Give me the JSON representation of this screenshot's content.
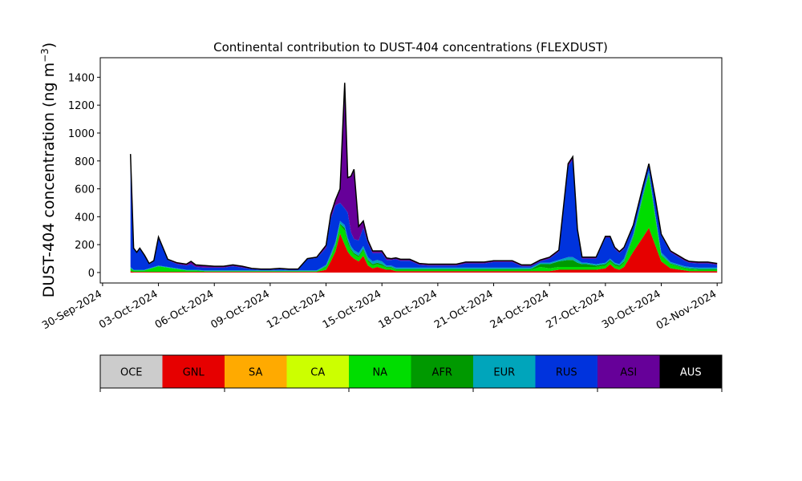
{
  "chart_data": {
    "type": "area",
    "title": "Continental contribution to DUST-404 concentrations (FLEXDUST)",
    "ylabel": "DUST-404 concentration (ng m",
    "ylabel_sup": "−3",
    "ylabel_close": ")",
    "xlabel": "",
    "ylim": [
      -75,
      1540
    ],
    "xlim": [
      "2024-09-29T21:00",
      "2024-11-02T06:00"
    ],
    "yticks": [
      0,
      200,
      400,
      600,
      800,
      1000,
      1200,
      1400
    ],
    "xticks": [
      {
        "date": "2024-09-30",
        "label": "30-Sep-2024"
      },
      {
        "date": "2024-10-03",
        "label": "03-Oct-2024"
      },
      {
        "date": "2024-10-06",
        "label": "06-Oct-2024"
      },
      {
        "date": "2024-10-09",
        "label": "09-Oct-2024"
      },
      {
        "date": "2024-10-12",
        "label": "12-Oct-2024"
      },
      {
        "date": "2024-10-15",
        "label": "15-Oct-2024"
      },
      {
        "date": "2024-10-18",
        "label": "18-Oct-2024"
      },
      {
        "date": "2024-10-21",
        "label": "21-Oct-2024"
      },
      {
        "date": "2024-10-24",
        "label": "24-Oct-2024"
      },
      {
        "date": "2024-10-27",
        "label": "27-Oct-2024"
      },
      {
        "date": "2024-10-30",
        "label": "30-Oct-2024"
      },
      {
        "date": "2024-11-02",
        "label": "02-Nov-2024"
      }
    ],
    "grid": false,
    "legend_placement": "colorbar below plot",
    "x": [
      "2024-10-01T12:00",
      "2024-10-01T16:00",
      "2024-10-01T20:00",
      "2024-10-02T00:00",
      "2024-10-02T06:00",
      "2024-10-02T12:00",
      "2024-10-02T18:00",
      "2024-10-03T00:00",
      "2024-10-03T12:00",
      "2024-10-04T00:00",
      "2024-10-04T12:00",
      "2024-10-04T18:00",
      "2024-10-05T00:00",
      "2024-10-05T12:00",
      "2024-10-06T00:00",
      "2024-10-06T12:00",
      "2024-10-07T00:00",
      "2024-10-07T12:00",
      "2024-10-08T00:00",
      "2024-10-08T12:00",
      "2024-10-09T00:00",
      "2024-10-09T12:00",
      "2024-10-10T00:00",
      "2024-10-10T12:00",
      "2024-10-11T00:00",
      "2024-10-11T12:00",
      "2024-10-12T00:00",
      "2024-10-12T06:00",
      "2024-10-12T12:00",
      "2024-10-12T18:00",
      "2024-10-13T00:00",
      "2024-10-13T04:00",
      "2024-10-13T08:00",
      "2024-10-13T12:00",
      "2024-10-13T18:00",
      "2024-10-14T00:00",
      "2024-10-14T06:00",
      "2024-10-14T12:00",
      "2024-10-14T18:00",
      "2024-10-15T00:00",
      "2024-10-15T06:00",
      "2024-10-15T12:00",
      "2024-10-15T18:00",
      "2024-10-16T00:00",
      "2024-10-16T12:00",
      "2024-10-17T00:00",
      "2024-10-17T12:00",
      "2024-10-18T00:00",
      "2024-10-18T12:00",
      "2024-10-19T00:00",
      "2024-10-19T12:00",
      "2024-10-20T00:00",
      "2024-10-20T12:00",
      "2024-10-21T00:00",
      "2024-10-21T12:00",
      "2024-10-22T00:00",
      "2024-10-22T12:00",
      "2024-10-23T00:00",
      "2024-10-23T12:00",
      "2024-10-24T00:00",
      "2024-10-24T12:00",
      "2024-10-25T00:00",
      "2024-10-25T06:00",
      "2024-10-25T12:00",
      "2024-10-25T18:00",
      "2024-10-26T00:00",
      "2024-10-26T12:00",
      "2024-10-27T00:00",
      "2024-10-27T06:00",
      "2024-10-27T12:00",
      "2024-10-27T18:00",
      "2024-10-28T00:00",
      "2024-10-28T12:00",
      "2024-10-29T00:00",
      "2024-10-29T08:00",
      "2024-10-29T16:00",
      "2024-10-30T00:00",
      "2024-10-30T12:00",
      "2024-10-31T00:00",
      "2024-10-31T06:00",
      "2024-10-31T12:00",
      "2024-11-01T00:00",
      "2024-11-01T12:00",
      "2024-11-02T00:00"
    ],
    "series": [
      {
        "name": "OCE",
        "color": "#cccccc",
        "values": [
          0,
          0,
          0,
          0,
          0,
          0,
          0,
          0,
          0,
          0,
          0,
          0,
          0,
          0,
          0,
          0,
          0,
          0,
          0,
          0,
          0,
          0,
          0,
          0,
          0,
          0,
          0,
          0,
          0,
          0,
          0,
          0,
          0,
          0,
          0,
          0,
          0,
          0,
          0,
          0,
          0,
          0,
          0,
          0,
          0,
          0,
          0,
          0,
          0,
          0,
          0,
          0,
          0,
          0,
          0,
          0,
          0,
          0,
          0,
          0,
          0,
          0,
          0,
          0,
          0,
          0,
          0,
          0,
          0,
          0,
          0,
          0,
          0,
          0,
          0,
          0,
          0,
          0,
          0,
          0,
          0,
          0,
          0,
          0
        ]
      },
      {
        "name": "GNL",
        "color": "#e60000",
        "values": [
          10,
          5,
          5,
          5,
          5,
          5,
          5,
          5,
          5,
          5,
          5,
          5,
          5,
          5,
          5,
          5,
          5,
          5,
          5,
          5,
          5,
          5,
          5,
          5,
          5,
          5,
          20,
          80,
          150,
          280,
          200,
          150,
          120,
          100,
          80,
          120,
          50,
          30,
          40,
          30,
          20,
          20,
          10,
          10,
          10,
          10,
          10,
          10,
          10,
          10,
          10,
          10,
          10,
          10,
          10,
          10,
          10,
          10,
          10,
          10,
          20,
          20,
          20,
          20,
          20,
          20,
          20,
          30,
          60,
          30,
          20,
          40,
          150,
          250,
          320,
          200,
          80,
          30,
          20,
          15,
          10,
          10,
          10,
          10
        ]
      },
      {
        "name": "SA",
        "color": "#ffaa00",
        "values": [
          0,
          0,
          0,
          0,
          0,
          0,
          0,
          0,
          0,
          0,
          0,
          0,
          0,
          0,
          0,
          0,
          0,
          0,
          0,
          0,
          0,
          0,
          0,
          0,
          0,
          0,
          0,
          0,
          0,
          0,
          0,
          0,
          0,
          0,
          0,
          0,
          0,
          0,
          0,
          0,
          0,
          0,
          0,
          0,
          0,
          0,
          0,
          0,
          0,
          0,
          0,
          0,
          0,
          0,
          0,
          0,
          0,
          0,
          0,
          0,
          0,
          0,
          0,
          0,
          0,
          0,
          0,
          0,
          0,
          0,
          0,
          0,
          0,
          0,
          0,
          0,
          0,
          0,
          0,
          0,
          0,
          0,
          0,
          0
        ]
      },
      {
        "name": "CA",
        "color": "#ccff00",
        "values": [
          0,
          0,
          0,
          0,
          0,
          0,
          0,
          0,
          0,
          0,
          0,
          0,
          0,
          0,
          0,
          0,
          0,
          0,
          0,
          0,
          0,
          0,
          0,
          0,
          0,
          0,
          0,
          0,
          0,
          0,
          0,
          0,
          0,
          0,
          0,
          0,
          0,
          0,
          0,
          0,
          0,
          0,
          0,
          0,
          0,
          0,
          0,
          0,
          0,
          0,
          0,
          0,
          0,
          0,
          0,
          0,
          0,
          0,
          0,
          0,
          0,
          0,
          0,
          0,
          0,
          0,
          0,
          0,
          0,
          0,
          0,
          0,
          0,
          0,
          0,
          0,
          0,
          0,
          0,
          0,
          0,
          0,
          0,
          0
        ]
      },
      {
        "name": "NA",
        "color": "#00dd00",
        "values": [
          20,
          10,
          10,
          10,
          10,
          20,
          30,
          40,
          30,
          20,
          10,
          10,
          10,
          5,
          5,
          5,
          5,
          5,
          5,
          5,
          5,
          5,
          5,
          5,
          5,
          5,
          20,
          30,
          40,
          60,
          100,
          60,
          40,
          30,
          30,
          40,
          30,
          20,
          20,
          20,
          15,
          15,
          10,
          10,
          10,
          10,
          10,
          10,
          10,
          10,
          10,
          10,
          10,
          10,
          10,
          10,
          10,
          10,
          30,
          20,
          20,
          20,
          20,
          20,
          20,
          20,
          20,
          20,
          20,
          20,
          20,
          30,
          100,
          280,
          380,
          200,
          40,
          30,
          20,
          15,
          15,
          10,
          10,
          10
        ]
      },
      {
        "name": "AFR",
        "color": "#009900",
        "values": [
          0,
          0,
          0,
          0,
          0,
          0,
          0,
          0,
          0,
          0,
          0,
          0,
          0,
          0,
          0,
          0,
          0,
          0,
          0,
          0,
          0,
          0,
          0,
          0,
          0,
          0,
          5,
          5,
          10,
          10,
          20,
          20,
          10,
          10,
          10,
          10,
          10,
          10,
          10,
          10,
          5,
          5,
          5,
          5,
          5,
          5,
          5,
          5,
          5,
          5,
          5,
          5,
          5,
          5,
          5,
          5,
          5,
          5,
          20,
          30,
          40,
          50,
          50,
          30,
          20,
          20,
          10,
          10,
          10,
          10,
          10,
          10,
          10,
          10,
          10,
          10,
          5,
          5,
          5,
          5,
          5,
          5,
          5,
          5
        ]
      },
      {
        "name": "EUR",
        "color": "#00a5bb",
        "values": [
          10,
          5,
          5,
          5,
          5,
          5,
          5,
          5,
          5,
          5,
          5,
          5,
          5,
          5,
          5,
          5,
          5,
          5,
          5,
          5,
          5,
          5,
          5,
          5,
          5,
          5,
          10,
          20,
          20,
          20,
          20,
          20,
          20,
          20,
          20,
          20,
          20,
          20,
          20,
          20,
          10,
          10,
          10,
          10,
          10,
          10,
          10,
          10,
          10,
          10,
          10,
          10,
          10,
          10,
          10,
          10,
          10,
          10,
          10,
          10,
          10,
          20,
          20,
          20,
          10,
          10,
          10,
          10,
          10,
          10,
          10,
          20,
          20,
          20,
          20,
          20,
          20,
          10,
          10,
          10,
          10,
          10,
          10,
          10
        ]
      },
      {
        "name": "RUS",
        "color": "#0033dd",
        "values": [
          800,
          150,
          120,
          150,
          100,
          30,
          40,
          200,
          50,
          30,
          30,
          40,
          20,
          20,
          20,
          20,
          30,
          20,
          10,
          5,
          5,
          10,
          5,
          5,
          80,
          90,
          120,
          250,
          260,
          130,
          120,
          180,
          100,
          80,
          90,
          130,
          100,
          60,
          50,
          60,
          40,
          40,
          60,
          50,
          50,
          20,
          15,
          15,
          15,
          15,
          30,
          30,
          30,
          40,
          40,
          40,
          10,
          10,
          10,
          30,
          60,
          650,
          700,
          200,
          30,
          30,
          40,
          180,
          150,
          100,
          80,
          70,
          50,
          40,
          40,
          100,
          120,
          70,
          50,
          40,
          30,
          30,
          30,
          20
        ]
      },
      {
        "name": "ASI",
        "color": "#660099",
        "values": [
          10,
          5,
          5,
          5,
          5,
          5,
          5,
          5,
          5,
          10,
          10,
          20,
          15,
          15,
          10,
          10,
          10,
          10,
          5,
          5,
          5,
          5,
          5,
          5,
          5,
          5,
          20,
          30,
          40,
          100,
          900,
          250,
          400,
          500,
          100,
          50,
          20,
          15,
          15,
          15,
          15,
          10,
          10,
          10,
          10,
          10,
          10,
          10,
          10,
          10,
          10,
          10,
          10,
          10,
          10,
          10,
          10,
          10,
          10,
          10,
          10,
          20,
          20,
          20,
          10,
          10,
          10,
          10,
          10,
          10,
          10,
          10,
          10,
          10,
          10,
          10,
          10,
          10,
          10,
          10,
          10,
          10,
          10,
          10
        ]
      },
      {
        "name": "AUS",
        "color": "#000000",
        "values": [
          0,
          0,
          0,
          0,
          0,
          0,
          0,
          0,
          0,
          0,
          0,
          0,
          0,
          0,
          0,
          0,
          0,
          0,
          0,
          0,
          0,
          0,
          0,
          0,
          0,
          0,
          0,
          0,
          0,
          0,
          0,
          0,
          0,
          0,
          0,
          0,
          0,
          0,
          0,
          0,
          0,
          0,
          0,
          0,
          0,
          0,
          0,
          0,
          0,
          0,
          0,
          0,
          0,
          0,
          0,
          0,
          0,
          0,
          0,
          0,
          0,
          0,
          0,
          0,
          0,
          0,
          0,
          0,
          0,
          0,
          0,
          0,
          0,
          0,
          0,
          0,
          0,
          0,
          0,
          0,
          0,
          0,
          0,
          0
        ]
      }
    ]
  }
}
